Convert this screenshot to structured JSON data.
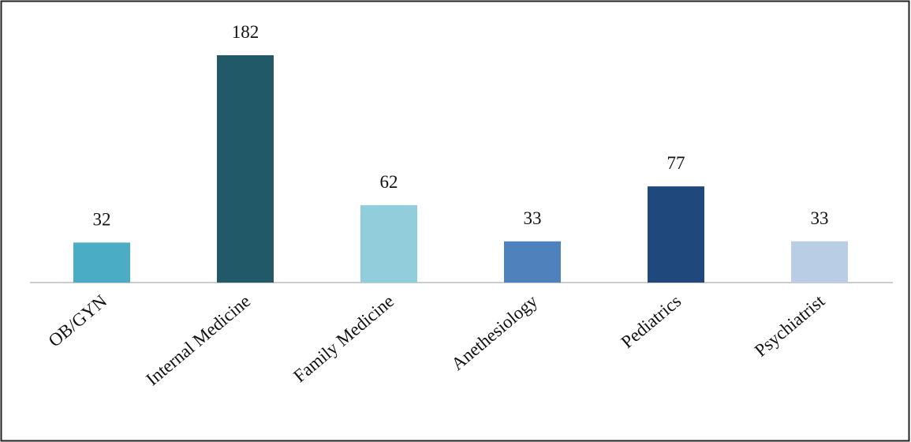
{
  "chart_data": {
    "type": "bar",
    "categories": [
      "OB/GYN",
      "Internal Medicine",
      "Family Medicine",
      "Anethesiology",
      "Pediatrics",
      "Psychiatrist"
    ],
    "values": [
      32,
      182,
      62,
      33,
      77,
      33
    ],
    "colors": [
      "#4bacc6",
      "#215968",
      "#92cddc",
      "#4f81bd",
      "#1f497d",
      "#b9cde5"
    ]
  }
}
